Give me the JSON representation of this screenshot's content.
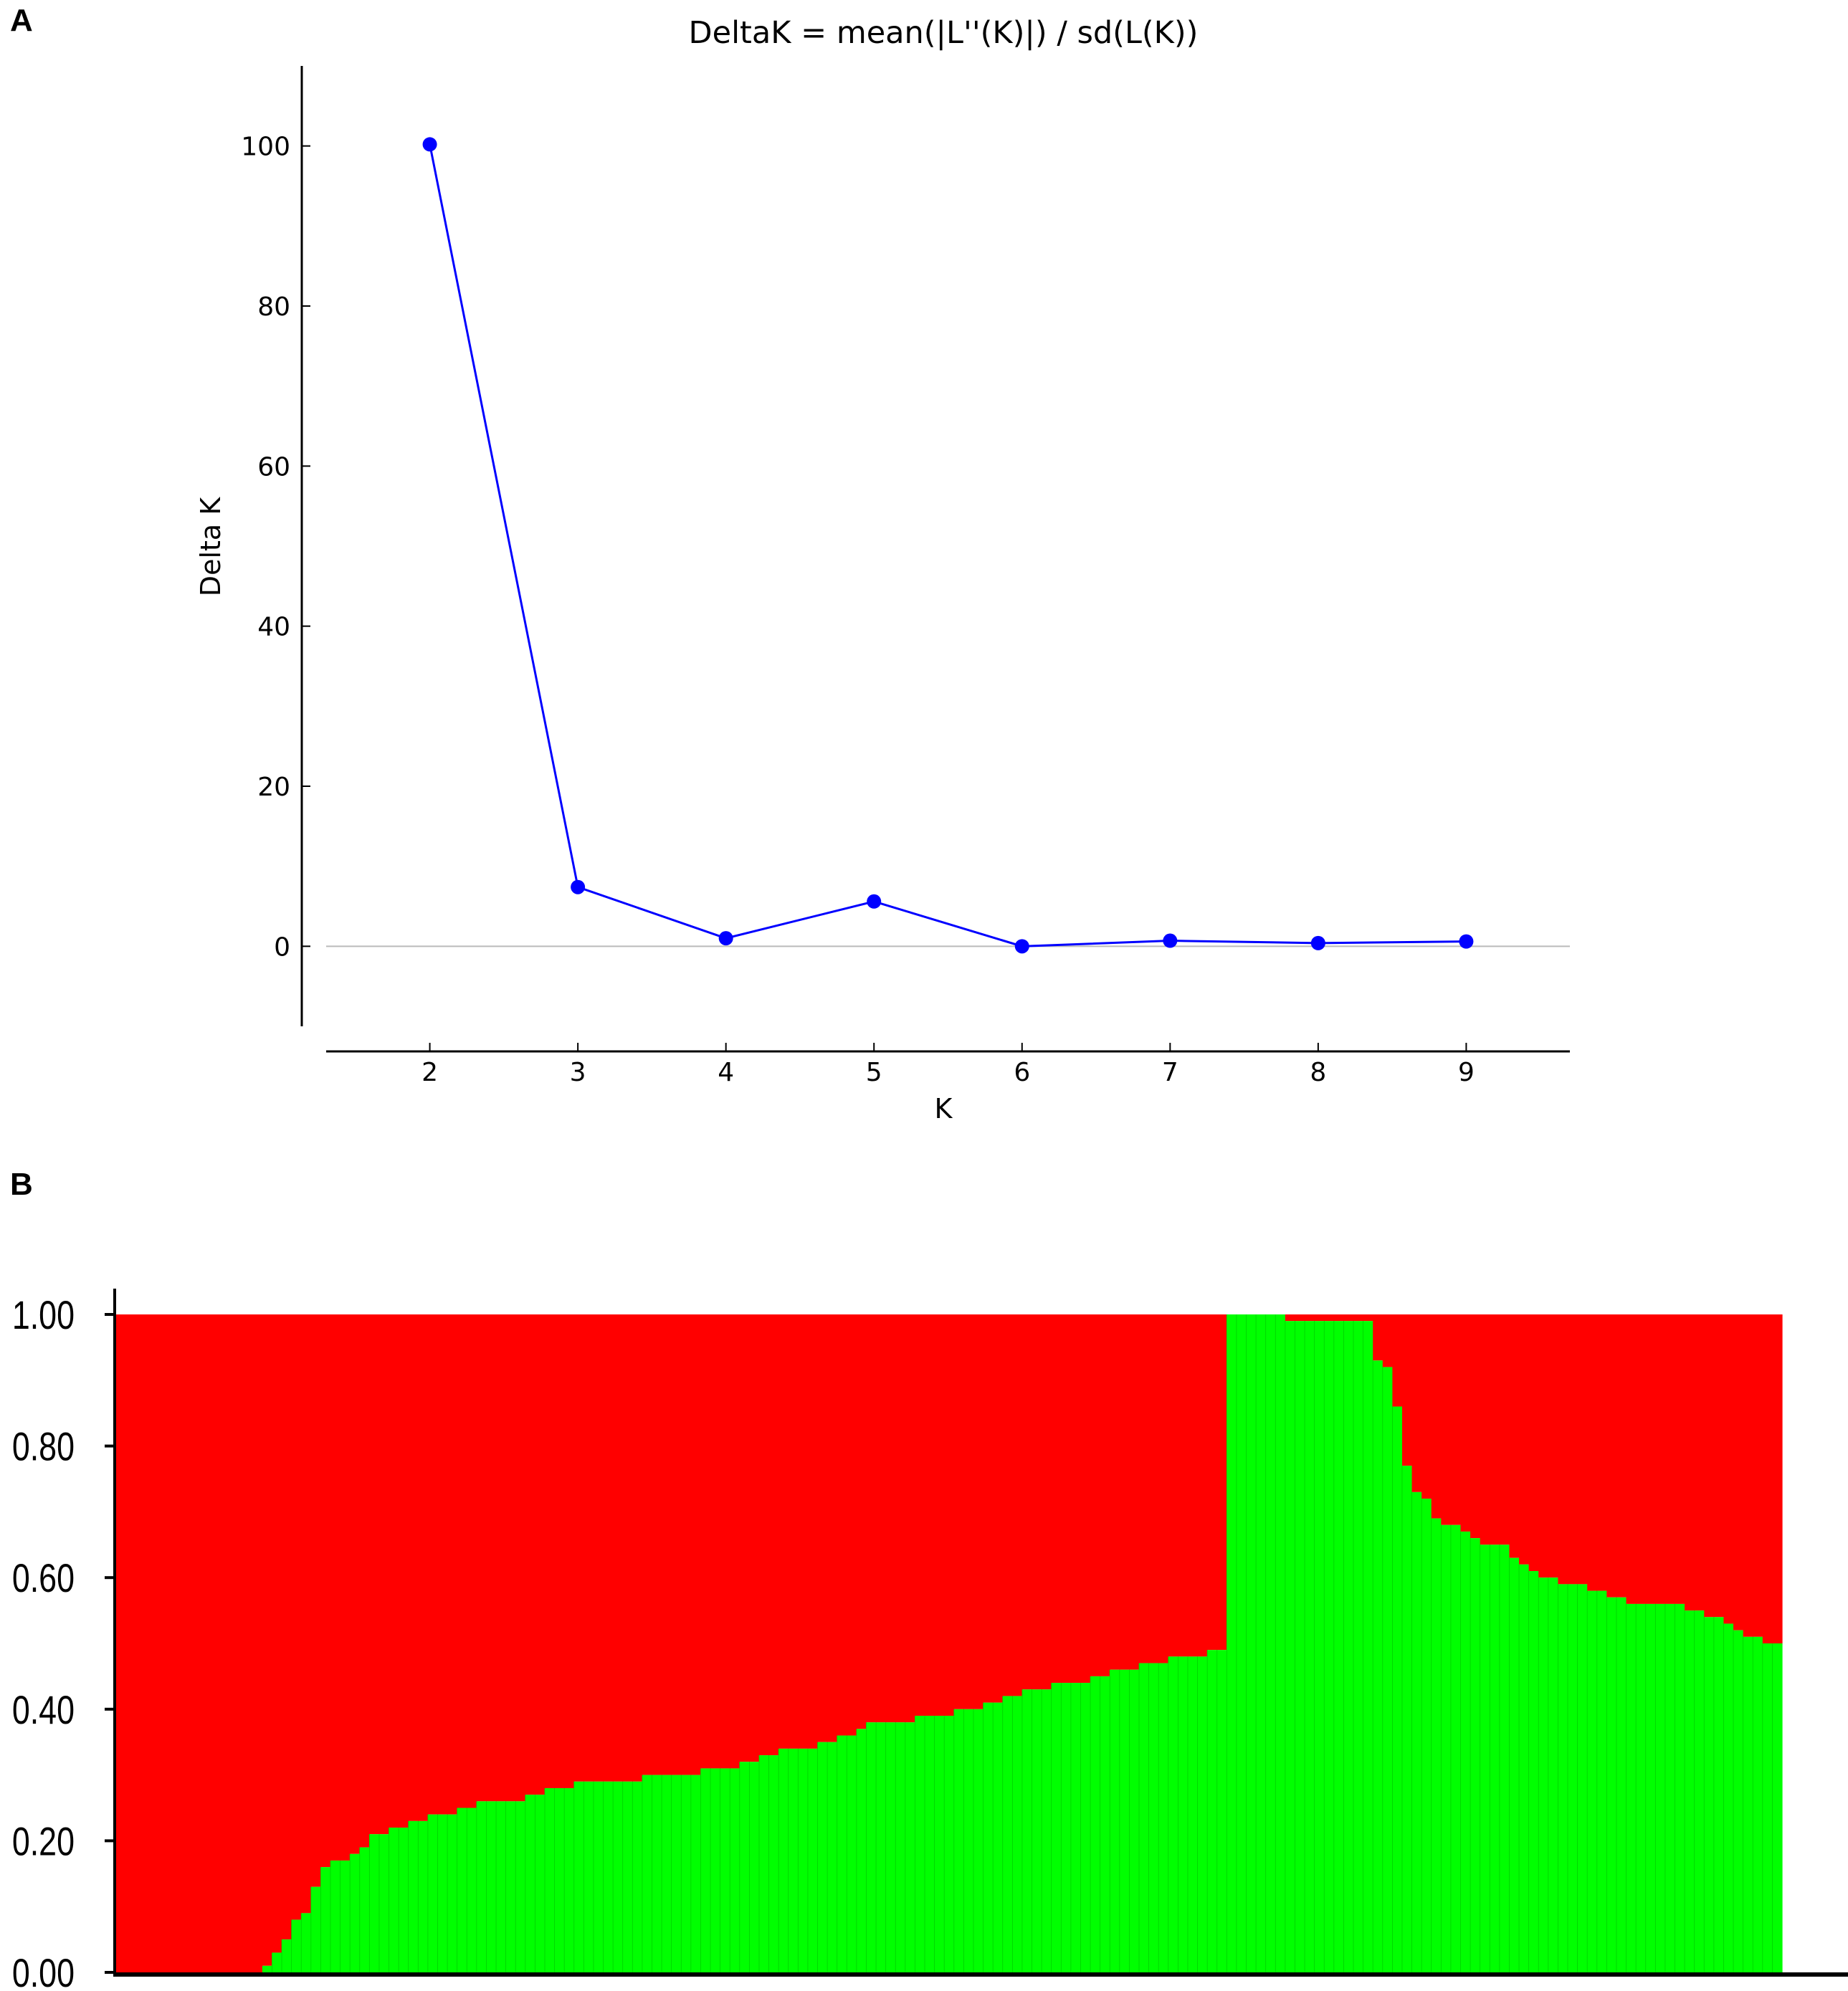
{
  "panel_a_label": "A",
  "panel_b_label": "B",
  "chart_data": [
    {
      "type": "line",
      "title": "DeltaK = mean(|L''(K)|) / sd(L(K))",
      "xlabel": "K",
      "ylabel": "Delta K",
      "x": [
        2,
        3,
        4,
        5,
        6,
        7,
        8,
        9
      ],
      "series": [
        {
          "values": [
            100.2,
            7.4,
            1.0,
            5.6,
            0.0,
            0.7,
            0.4,
            0.6
          ]
        }
      ],
      "xlim": [
        1.3,
        9.7
      ],
      "ylim": [
        -10,
        110
      ],
      "xticks": [
        "2",
        "3",
        "4",
        "5",
        "6",
        "7",
        "8",
        "9"
      ],
      "yticks": [
        "0",
        "20",
        "40",
        "60",
        "80",
        "100"
      ],
      "grid": false,
      "line_color": "#0000ff",
      "marker_color": "#0000ff",
      "zero_line_color": "#bbbbbb"
    },
    {
      "type": "bar",
      "stacked": true,
      "ylim": [
        0,
        1
      ],
      "yticks": [
        "0.00",
        "0.20",
        "0.40",
        "0.60",
        "0.80",
        "1.00"
      ],
      "colors": {
        "cluster_1": "#ff0000",
        "cluster_2": "#00ff00"
      },
      "cluster_2_fraction": [
        0,
        0,
        0,
        0,
        0,
        0,
        0,
        0,
        0,
        0,
        0,
        0,
        0,
        0,
        0,
        0.01,
        0.03,
        0.05,
        0.08,
        0.09,
        0.13,
        0.16,
        0.17,
        0.17,
        0.18,
        0.19,
        0.21,
        0.21,
        0.22,
        0.22,
        0.23,
        0.23,
        0.24,
        0.24,
        0.24,
        0.25,
        0.25,
        0.26,
        0.26,
        0.26,
        0.26,
        0.26,
        0.27,
        0.27,
        0.28,
        0.28,
        0.28,
        0.29,
        0.29,
        0.29,
        0.29,
        0.29,
        0.29,
        0.29,
        0.3,
        0.3,
        0.3,
        0.3,
        0.3,
        0.3,
        0.31,
        0.31,
        0.31,
        0.31,
        0.32,
        0.32,
        0.33,
        0.33,
        0.34,
        0.34,
        0.34,
        0.34,
        0.35,
        0.35,
        0.36,
        0.36,
        0.37,
        0.38,
        0.38,
        0.38,
        0.38,
        0.38,
        0.39,
        0.39,
        0.39,
        0.39,
        0.4,
        0.4,
        0.4,
        0.41,
        0.41,
        0.42,
        0.42,
        0.43,
        0.43,
        0.43,
        0.44,
        0.44,
        0.44,
        0.44,
        0.45,
        0.45,
        0.46,
        0.46,
        0.46,
        0.47,
        0.47,
        0.47,
        0.48,
        0.48,
        0.48,
        0.48,
        0.49,
        0.49,
        1.0,
        1.0,
        1.0,
        1.0,
        1.0,
        1.0,
        0.99,
        0.99,
        0.99,
        0.99,
        0.99,
        0.99,
        0.99,
        0.99,
        0.99,
        0.93,
        0.92,
        0.86,
        0.77,
        0.73,
        0.72,
        0.69,
        0.68,
        0.68,
        0.67,
        0.66,
        0.65,
        0.65,
        0.65,
        0.63,
        0.62,
        0.61,
        0.6,
        0.6,
        0.59,
        0.59,
        0.59,
        0.58,
        0.58,
        0.57,
        0.57,
        0.56,
        0.56,
        0.56,
        0.56,
        0.56,
        0.56,
        0.55,
        0.55,
        0.54,
        0.54,
        0.53,
        0.52,
        0.51,
        0.51,
        0.5,
        0.5
      ]
    }
  ]
}
